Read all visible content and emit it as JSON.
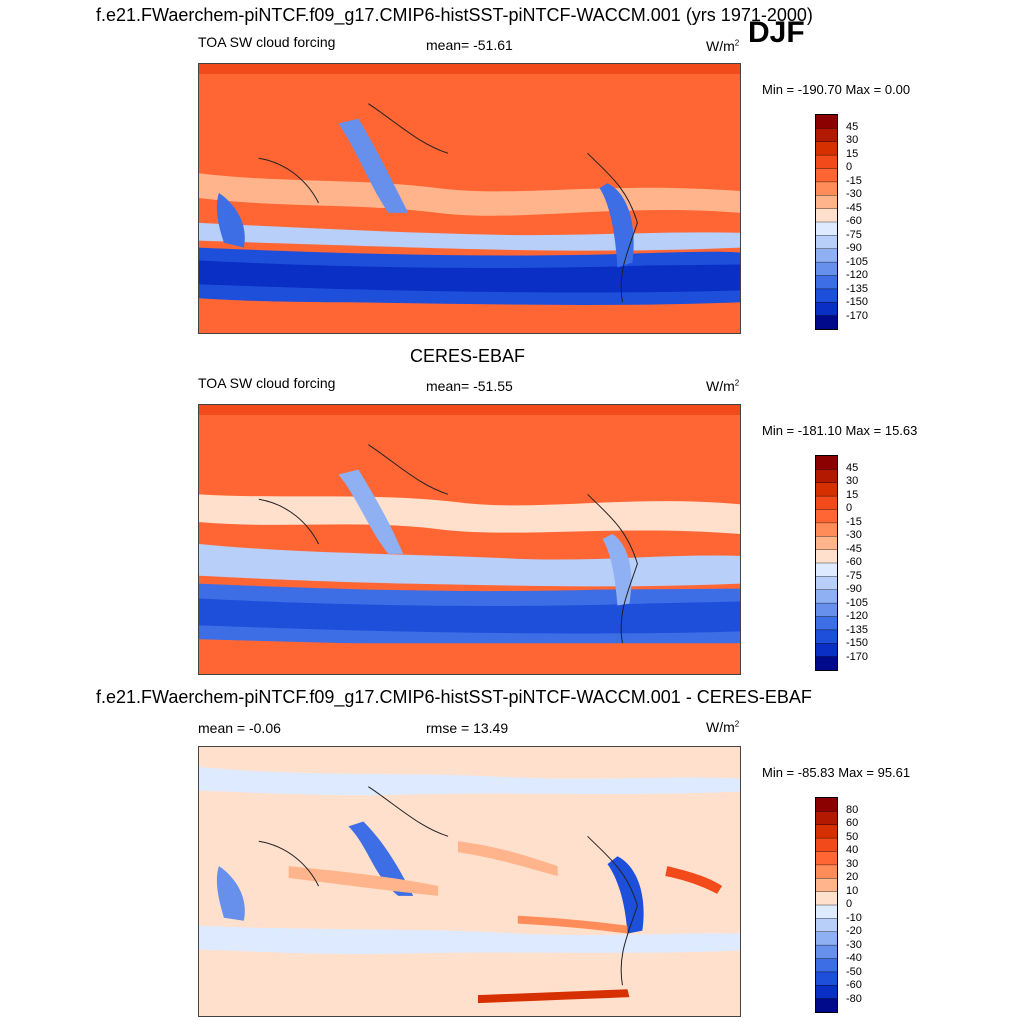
{
  "header": {
    "title": "f.e21.FWaerchem-piNTCF.f09_g17.CMIP6-histSST-piNTCF-WACCM.001 (yrs 1971-2000)",
    "season": "DJF"
  },
  "panels": [
    {
      "id": "model",
      "left_label": "TOA SW cloud forcing",
      "center_label": "mean= -51.61",
      "units": "W/m",
      "units_exp": "2",
      "minmax": "Min = -190.70 Max =   0.00",
      "colorbar": {
        "colors": [
          "#8b0000",
          "#b31800",
          "#d62f00",
          "#f24a1a",
          "#ff6633",
          "#ff8c59",
          "#ffb48c",
          "#ffe0cc",
          "#ddeaff",
          "#b7cff9",
          "#8fb0f2",
          "#6690eb",
          "#3d6ee6",
          "#1e4fdb",
          "#0a2fc4",
          "#000a8b"
        ],
        "labels": [
          "45",
          "30",
          "15",
          "0",
          "-15",
          "-30",
          "-45",
          "-60",
          "-75",
          "-90",
          "-105",
          "-120",
          "-135",
          "-150",
          "-170"
        ]
      }
    },
    {
      "id": "obs",
      "header": "CERES-EBAF",
      "left_label": "TOA SW cloud forcing",
      "center_label": "mean= -51.55",
      "units": "W/m",
      "units_exp": "2",
      "minmax": "Min = -181.10 Max =  15.63",
      "colorbar": {
        "colors": [
          "#8b0000",
          "#b31800",
          "#d62f00",
          "#f24a1a",
          "#ff6633",
          "#ff8c59",
          "#ffb48c",
          "#ffe0cc",
          "#ddeaff",
          "#b7cff9",
          "#8fb0f2",
          "#6690eb",
          "#3d6ee6",
          "#1e4fdb",
          "#0a2fc4",
          "#000a8b"
        ],
        "labels": [
          "45",
          "30",
          "15",
          "0",
          "-15",
          "-30",
          "-45",
          "-60",
          "-75",
          "-90",
          "-105",
          "-120",
          "-135",
          "-150",
          "-170"
        ]
      }
    },
    {
      "id": "diff",
      "header": "f.e21.FWaerchem-piNTCF.f09_g17.CMIP6-histSST-piNTCF-WACCM.001 - CERES-EBAF",
      "left_label": "mean =  -0.06",
      "center_label": "rmse =  13.49",
      "units": "W/m",
      "units_exp": "2",
      "minmax": "Min = -85.83 Max =  95.61",
      "colorbar": {
        "colors": [
          "#8b0000",
          "#b31800",
          "#d62f00",
          "#f24a1a",
          "#ff6633",
          "#ff8c59",
          "#ffb48c",
          "#ffe0cc",
          "#ddeaff",
          "#b7cff9",
          "#8fb0f2",
          "#6690eb",
          "#3d6ee6",
          "#1e4fdb",
          "#0a2fc4",
          "#000a8b"
        ],
        "labels": [
          "80",
          "60",
          "50",
          "40",
          "30",
          "20",
          "10",
          "0",
          "-10",
          "-20",
          "-30",
          "-40",
          "-50",
          "-60",
          "-80"
        ]
      }
    }
  ]
}
